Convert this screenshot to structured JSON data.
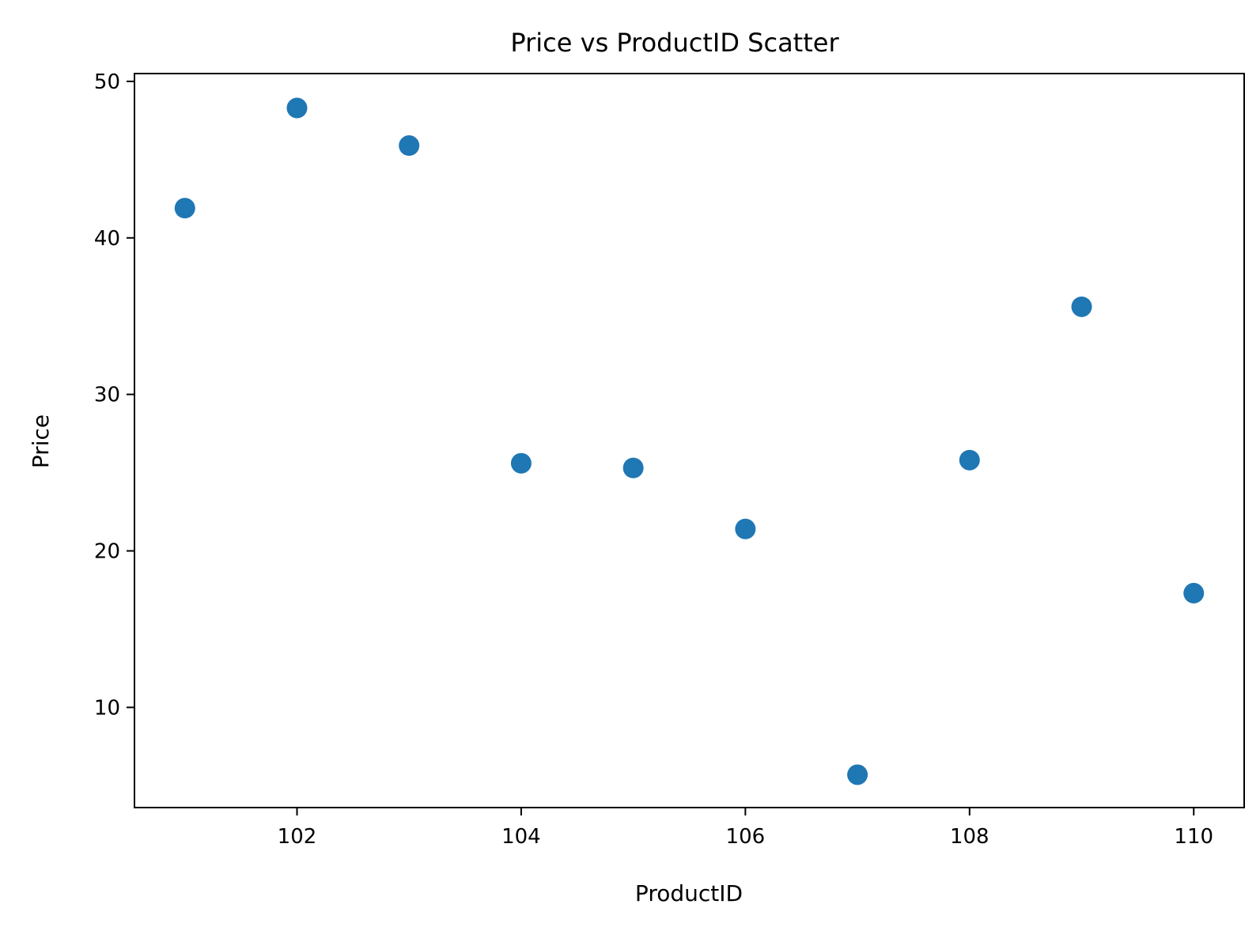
{
  "chart_data": {
    "type": "scatter",
    "title": "Price vs ProductID Scatter",
    "xlabel": "ProductID",
    "ylabel": "Price",
    "xlim": [
      100.55,
      110.45
    ],
    "ylim": [
      3.6,
      50.5
    ],
    "xticks": [
      102,
      104,
      106,
      108,
      110
    ],
    "yticks": [
      10,
      20,
      30,
      40,
      50
    ],
    "grid": false,
    "legend": false,
    "marker_color": "#1f77b4",
    "series": [
      {
        "x": [
          101,
          102,
          103,
          104,
          105,
          106,
          107,
          108,
          109,
          110
        ],
        "y": [
          41.9,
          48.3,
          45.9,
          25.6,
          25.3,
          21.4,
          5.7,
          25.8,
          35.6,
          17.3
        ]
      }
    ]
  }
}
